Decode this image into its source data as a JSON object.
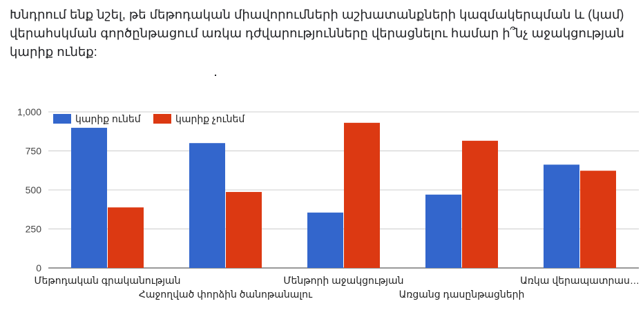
{
  "question": {
    "text": "Խնդրում ենք նշել, թե մեթոդական միավորումների աշխատանքների կազմակերպման և (կամ) վերահսկման գործընթացում առկա դժվարությունները վերացնելու համար ի՞նչ աջակցության կարիք ունեք:"
  },
  "chart_data": {
    "type": "bar",
    "categories": [
      "Մեթոդական գրականության",
      "Հաջողված փորձին ծանոթանալու",
      "Մենթորի աջակցության",
      "Առցանց դասընթացների",
      "Առկա վերապատրաս…"
    ],
    "series": [
      {
        "name": "կարիք ունեմ",
        "color": "#3366cc",
        "values": [
          898,
          800,
          355,
          470,
          662
        ]
      },
      {
        "name": "կարիք չունեմ",
        "color": "#dc3912",
        "values": [
          388,
          487,
          930,
          815,
          623
        ]
      }
    ],
    "yticks": [
      "0",
      "250",
      "500",
      "750",
      "1,000"
    ],
    "ylim": [
      0,
      1000
    ],
    "grid": true,
    "legend_position": "top-left"
  }
}
